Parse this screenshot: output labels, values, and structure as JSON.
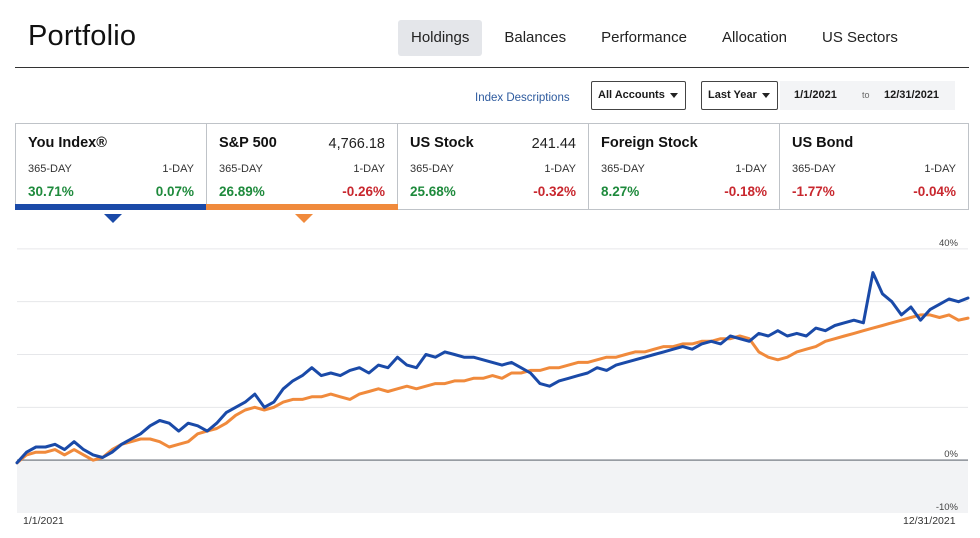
{
  "page": {
    "title": "Portfolio"
  },
  "tabs": [
    {
      "label": "Holdings",
      "active": true
    },
    {
      "label": "Balances",
      "active": false
    },
    {
      "label": "Performance",
      "active": false
    },
    {
      "label": "Allocation",
      "active": false
    },
    {
      "label": "US Sectors",
      "active": false
    }
  ],
  "filters": {
    "index_descriptions": "Index Descriptions",
    "accounts": "All Accounts",
    "period": "Last Year",
    "date_from": "1/1/2021",
    "date_to_label": "to",
    "date_to": "12/31/2021"
  },
  "cards": [
    {
      "name": "You Index®",
      "price": "",
      "label_365": "365-DAY",
      "label_1d": "1-DAY",
      "value_365": "30.71%",
      "value_1d": "0.07%",
      "dir_365": "pos",
      "dir_1d": "pos",
      "selected": true,
      "color": "#1a4aa8"
    },
    {
      "name": "S&P 500",
      "price": "4,766.18",
      "label_365": "365-DAY",
      "label_1d": "1-DAY",
      "value_365": "26.89%",
      "value_1d": "-0.26%",
      "dir_365": "pos",
      "dir_1d": "neg",
      "selected": true,
      "color": "#f08a3c"
    },
    {
      "name": "US Stock",
      "price": "241.44",
      "label_365": "365-DAY",
      "label_1d": "1-DAY",
      "value_365": "25.68%",
      "value_1d": "-0.32%",
      "dir_365": "pos",
      "dir_1d": "neg",
      "selected": false,
      "color": ""
    },
    {
      "name": "Foreign Stock",
      "price": "",
      "label_365": "365-DAY",
      "label_1d": "1-DAY",
      "value_365": "8.27%",
      "value_1d": "-0.18%",
      "dir_365": "pos",
      "dir_1d": "neg",
      "selected": false,
      "color": ""
    },
    {
      "name": "US Bond",
      "price": "",
      "label_365": "365-DAY",
      "label_1d": "1-DAY",
      "value_365": "-1.77%",
      "value_1d": "-0.04%",
      "dir_365": "neg",
      "dir_1d": "neg",
      "selected": false,
      "color": ""
    }
  ],
  "chart_data": {
    "type": "line",
    "x_start_label": "1/1/2021",
    "x_end_label": "12/31/2021",
    "y_tick_labels": [
      "40%",
      "0%",
      "-10%"
    ],
    "y_ticks": [
      40,
      0,
      -10
    ],
    "ylim": [
      -10,
      43
    ],
    "grid": true,
    "series": [
      {
        "name": "You Index®",
        "color": "#1a4aa8",
        "values": [
          -0.5,
          1.5,
          2.5,
          2.5,
          3.0,
          2.0,
          3.5,
          2.0,
          1.0,
          0.5,
          1.5,
          3.0,
          4.0,
          5.0,
          6.5,
          7.5,
          7.0,
          5.5,
          7.0,
          6.5,
          5.5,
          7.0,
          9.0,
          10.0,
          11.0,
          12.5,
          10.0,
          11.0,
          13.5,
          15.0,
          16.0,
          17.5,
          16.0,
          16.5,
          16.0,
          17.0,
          17.5,
          16.5,
          18.0,
          17.5,
          19.5,
          18.0,
          17.5,
          20.0,
          19.5,
          20.5,
          20.0,
          19.5,
          19.5,
          19.0,
          18.5,
          18.0,
          18.5,
          17.5,
          16.5,
          14.5,
          14.0,
          15.0,
          15.5,
          16.0,
          16.5,
          17.5,
          17.0,
          18.0,
          18.5,
          19.0,
          19.5,
          20.0,
          20.5,
          21.0,
          21.5,
          21.0,
          22.0,
          22.5,
          22.0,
          23.5,
          23.0,
          22.5,
          24.0,
          23.5,
          24.5,
          23.5,
          24.0,
          23.5,
          25.0,
          24.5,
          25.5,
          26.0,
          26.5,
          26.0,
          35.5,
          31.5,
          30.0,
          27.5,
          29.0,
          26.5,
          28.5,
          29.5,
          30.5,
          30.0,
          30.7
        ]
      },
      {
        "name": "S&P 500",
        "color": "#f08a3c",
        "values": [
          -0.5,
          1.0,
          1.5,
          1.5,
          2.0,
          1.0,
          2.0,
          1.0,
          0.0,
          0.5,
          2.0,
          3.0,
          3.5,
          4.0,
          4.0,
          3.5,
          2.5,
          3.0,
          3.5,
          5.0,
          5.5,
          6.0,
          7.0,
          8.5,
          9.5,
          10.0,
          9.5,
          10.0,
          11.0,
          11.5,
          11.5,
          12.0,
          12.0,
          12.5,
          12.0,
          11.5,
          12.5,
          13.0,
          13.5,
          13.0,
          13.5,
          14.0,
          13.5,
          14.0,
          14.5,
          14.5,
          15.0,
          15.0,
          15.5,
          15.5,
          16.0,
          15.5,
          16.5,
          16.5,
          17.0,
          17.0,
          17.5,
          17.5,
          18.0,
          18.5,
          18.5,
          19.0,
          19.5,
          19.5,
          20.0,
          20.5,
          20.5,
          21.0,
          21.5,
          21.5,
          22.0,
          22.0,
          22.5,
          22.5,
          23.0,
          23.0,
          23.5,
          23.0,
          20.5,
          19.5,
          19.0,
          19.5,
          20.5,
          21.0,
          21.5,
          22.5,
          23.0,
          23.5,
          24.0,
          24.5,
          25.0,
          25.5,
          26.0,
          26.5,
          27.0,
          27.5,
          27.5,
          27.0,
          27.5,
          26.5,
          26.89
        ]
      }
    ]
  }
}
